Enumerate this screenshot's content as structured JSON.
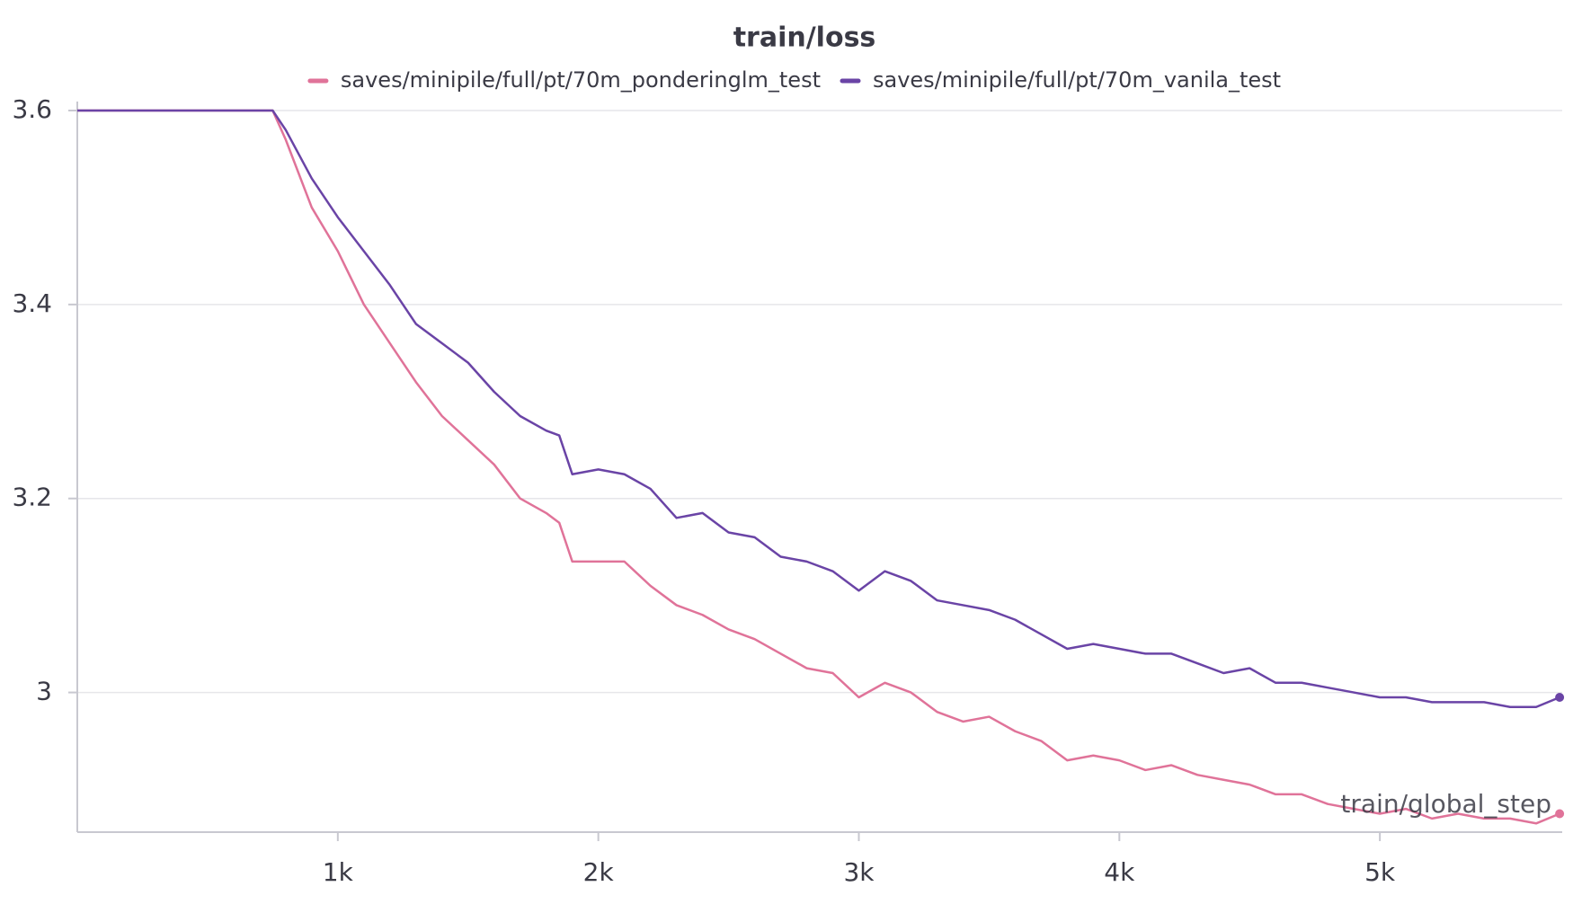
{
  "chart_data": {
    "type": "line",
    "title": "train/loss",
    "x_label": "train/global_step",
    "x": [
      0,
      750,
      800,
      900,
      1000,
      1100,
      1200,
      1300,
      1400,
      1500,
      1600,
      1700,
      1800,
      1850,
      1900,
      2000,
      2100,
      2200,
      2300,
      2400,
      2500,
      2600,
      2700,
      2800,
      2900,
      3000,
      3100,
      3200,
      3300,
      3400,
      3500,
      3600,
      3700,
      3800,
      3900,
      4000,
      4100,
      4200,
      4300,
      4400,
      4500,
      4600,
      4700,
      4800,
      4900,
      5000,
      5100,
      5200,
      5300,
      5400,
      5500,
      5600,
      5690
    ],
    "series": [
      {
        "name": "saves/minipile/full/pt/70m_ponderinglm_test",
        "color": "#e07399",
        "values": [
          3.6,
          3.6,
          3.57,
          3.5,
          3.455,
          3.4,
          3.36,
          3.32,
          3.285,
          3.26,
          3.235,
          3.2,
          3.185,
          3.175,
          3.135,
          3.135,
          3.135,
          3.11,
          3.09,
          3.08,
          3.065,
          3.055,
          3.04,
          3.025,
          3.02,
          2.995,
          3.01,
          3.0,
          2.98,
          2.97,
          2.975,
          2.96,
          2.95,
          2.93,
          2.935,
          2.93,
          2.92,
          2.925,
          2.915,
          2.91,
          2.905,
          2.895,
          2.895,
          2.885,
          2.88,
          2.875,
          2.88,
          2.87,
          2.875,
          2.87,
          2.87,
          2.865,
          2.875
        ]
      },
      {
        "name": "saves/minipile/full/pt/70m_vanila_test",
        "color": "#6a44a6",
        "values": [
          3.6,
          3.6,
          3.58,
          3.53,
          3.49,
          3.455,
          3.42,
          3.38,
          3.36,
          3.34,
          3.31,
          3.285,
          3.27,
          3.265,
          3.225,
          3.23,
          3.225,
          3.21,
          3.18,
          3.185,
          3.165,
          3.16,
          3.14,
          3.135,
          3.125,
          3.105,
          3.125,
          3.115,
          3.095,
          3.09,
          3.085,
          3.075,
          3.06,
          3.045,
          3.05,
          3.045,
          3.04,
          3.04,
          3.03,
          3.02,
          3.025,
          3.01,
          3.01,
          3.005,
          3.0,
          2.995,
          2.995,
          2.99,
          2.99,
          2.99,
          2.985,
          2.985,
          2.995
        ]
      }
    ],
    "xlim": [
      0,
      5700
    ],
    "xticks": [
      {
        "value": 1000,
        "label": "1k"
      },
      {
        "value": 2000,
        "label": "2k"
      },
      {
        "value": 3000,
        "label": "3k"
      },
      {
        "value": 4000,
        "label": "4k"
      },
      {
        "value": 5000,
        "label": "5k"
      }
    ],
    "ylim": [
      2.856,
      3.6
    ],
    "yticks": [
      3,
      3.2,
      3.4,
      3.6
    ],
    "grid": true
  }
}
